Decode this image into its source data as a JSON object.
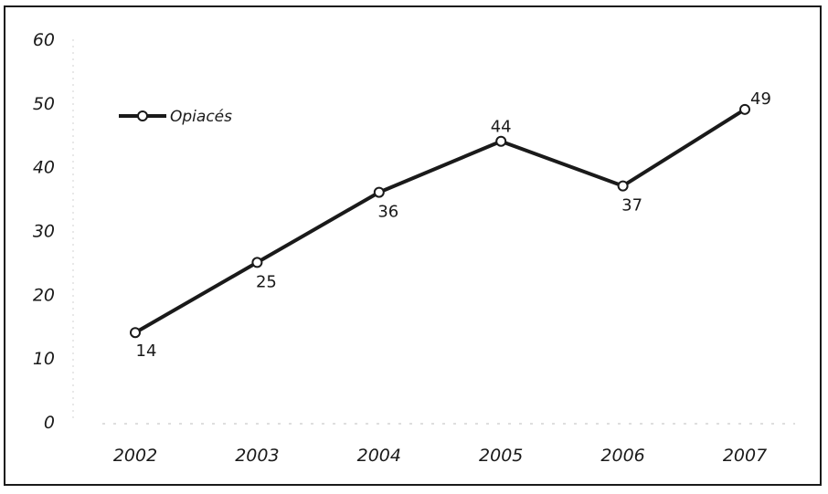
{
  "chart_data": {
    "type": "line",
    "title": "",
    "xlabel": "",
    "ylabel": "",
    "categories": [
      "2002",
      "2003",
      "2004",
      "2005",
      "2006",
      "2007"
    ],
    "ylim": [
      0,
      60
    ],
    "yticks": [
      "0",
      "10",
      "20",
      "30",
      "40",
      "50",
      "60"
    ],
    "grid": false,
    "legend_position": "top-left",
    "series": [
      {
        "name": "Opiacés",
        "values": [
          14,
          25,
          36,
          44,
          37,
          49
        ],
        "data_labels": [
          "14",
          "25",
          "36",
          "44",
          "37",
          "49"
        ],
        "color": "#1a1a1a",
        "marker": "open-circle"
      }
    ]
  }
}
